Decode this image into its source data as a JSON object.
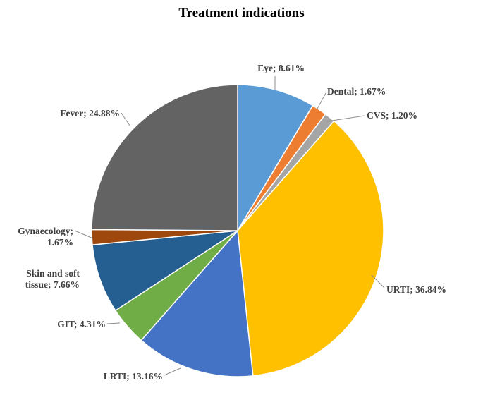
{
  "chart_data": {
    "type": "pie",
    "title": "Treatment indications",
    "start_angle_deg": 0,
    "direction": "clockwise",
    "slices": [
      {
        "label": "Eye",
        "value": 8.61,
        "display": "Eye; 8.61%",
        "color": "#5B9BD5"
      },
      {
        "label": "Dental",
        "value": 1.67,
        "display": "Dental; 1.67%",
        "color": "#ED7D31"
      },
      {
        "label": "CVS",
        "value": 1.2,
        "display": "CVS; 1.20%",
        "color": "#A5A5A5"
      },
      {
        "label": "URTI",
        "value": 36.84,
        "display": "URTI; 36.84%",
        "color": "#FFC000"
      },
      {
        "label": "LRTI",
        "value": 13.16,
        "display": "LRTI; 13.16%",
        "color": "#4472C4"
      },
      {
        "label": "GIT",
        "value": 4.31,
        "display": "GIT; 4.31%",
        "color": "#70AD47"
      },
      {
        "label": "Skin and soft tissue",
        "value": 7.66,
        "display": [
          "Skin and soft",
          "tissue; 7.66%"
        ],
        "color": "#255E91"
      },
      {
        "label": "Gynaecology",
        "value": 1.67,
        "display": [
          "Gynaecology;",
          "1.67%"
        ],
        "color": "#9E480E"
      },
      {
        "label": "Fever",
        "value": 24.88,
        "display": "Fever; 24.88%",
        "color": "#636363"
      }
    ]
  }
}
